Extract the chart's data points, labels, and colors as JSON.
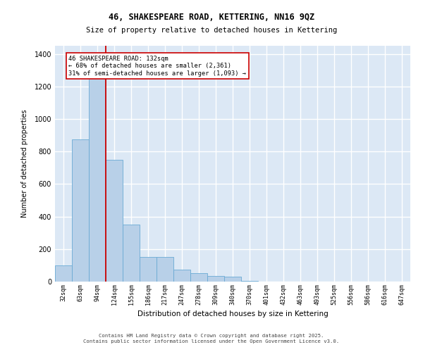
{
  "title1": "46, SHAKESPEARE ROAD, KETTERING, NN16 9QZ",
  "title2": "Size of property relative to detached houses in Kettering",
  "xlabel": "Distribution of detached houses by size in Kettering",
  "ylabel": "Number of detached properties",
  "categories": [
    "32sqm",
    "63sqm",
    "94sqm",
    "124sqm",
    "155sqm",
    "186sqm",
    "217sqm",
    "247sqm",
    "278sqm",
    "309sqm",
    "340sqm",
    "370sqm",
    "401sqm",
    "432sqm",
    "463sqm",
    "493sqm",
    "525sqm",
    "556sqm",
    "586sqm",
    "616sqm",
    "647sqm"
  ],
  "values": [
    100,
    875,
    1270,
    750,
    350,
    150,
    150,
    75,
    50,
    35,
    30,
    5,
    0,
    0,
    0,
    0,
    0,
    0,
    0,
    0,
    0
  ],
  "bar_color": "#b8d0e8",
  "bar_edge_color": "#6aaad4",
  "background_color": "#dce8f5",
  "grid_color": "#ffffff",
  "vline_color": "#cc0000",
  "vline_pos": 2.5,
  "annotation_text": "46 SHAKESPEARE ROAD: 132sqm\n← 68% of detached houses are smaller (2,361)\n31% of semi-detached houses are larger (1,093) →",
  "annotation_box_color": "#ffffff",
  "annotation_box_edge": "#cc0000",
  "ylim": [
    0,
    1450
  ],
  "yticks": [
    0,
    200,
    400,
    600,
    800,
    1000,
    1200,
    1400
  ],
  "footer1": "Contains HM Land Registry data © Crown copyright and database right 2025.",
  "footer2": "Contains public sector information licensed under the Open Government Licence v3.0."
}
